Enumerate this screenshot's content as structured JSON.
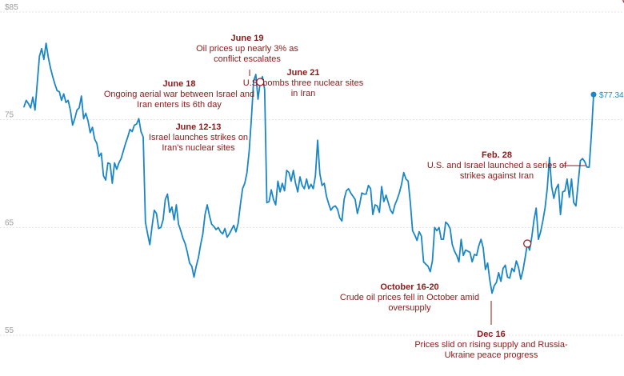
{
  "chart_data": {
    "type": "line",
    "title": "",
    "xlabel": "",
    "ylabel": "",
    "ylim": [
      55,
      85
    ],
    "yticks": [
      {
        "value": 85,
        "label": "$85"
      },
      {
        "value": 75,
        "label": "75"
      },
      {
        "value": 65,
        "label": "65"
      },
      {
        "value": 55,
        "label": "55"
      }
    ],
    "grid": true,
    "legend": "none",
    "colors": {
      "line": "#1a86c7",
      "annotation": "#8b1a1a",
      "end_label": "#1a86c7",
      "grid": "#e2e2e2",
      "tick": "#9a9a9a"
    },
    "series": [
      {
        "values": [
          76.2,
          76.8,
          76.5,
          76.1,
          77.1,
          75.9,
          78.4,
          80.9,
          81.6,
          80.6,
          82.1,
          80.8,
          79.8,
          79.0,
          78.3,
          77.7,
          77.6,
          76.8,
          77.4,
          76.6,
          76.8,
          75.9,
          74.5,
          75.1,
          75.9,
          76.1,
          77.2,
          75.1,
          75.6,
          74.9,
          73.8,
          74.3,
          73.2,
          72.8,
          71.6,
          71.9,
          69.8,
          69.4,
          71.0,
          70.9,
          69.1,
          71.0,
          70.4,
          71.0,
          71.4,
          72.1,
          72.8,
          73.4,
          74.1,
          73.9,
          74.5,
          74.6,
          75.1,
          73.9,
          73.4,
          65.5,
          64.4,
          63.4,
          65.1,
          66.6,
          66.3,
          64.9,
          65.0,
          65.7,
          67.6,
          68.1,
          66.4,
          66.9,
          65.7,
          67.1,
          65.3,
          64.7,
          64.0,
          63.5,
          62.7,
          61.7,
          61.4,
          60.4,
          61.4,
          62.2,
          63.4,
          64.4,
          66.2,
          67.1,
          66.1,
          65.3,
          65.1,
          64.8,
          65.0,
          64.6,
          64.4,
          64.9,
          64.1,
          64.4,
          64.8,
          65.2,
          64.6,
          65.4,
          67.1,
          68.6,
          69.1,
          70.1,
          72.1,
          75.1,
          78.6,
          79.2,
          76.9,
          78.5,
          79.0,
          77.8,
          67.3,
          67.4,
          68.5,
          67.6,
          67.1,
          69.3,
          68.3,
          69.1,
          68.4,
          70.3,
          70.1,
          69.3,
          70.3,
          69.1,
          68.3,
          69.7,
          68.9,
          68.6,
          69.5,
          68.6,
          69.0,
          68.6,
          69.8,
          73.1,
          70.0,
          68.9,
          69.1,
          67.9,
          67.2,
          66.6,
          66.9,
          67.0,
          66.7,
          65.9,
          65.6,
          67.6,
          68.4,
          68.6,
          68.2,
          67.9,
          67.6,
          66.3,
          67.1,
          68.2,
          68.1,
          68.1,
          68.9,
          68.6,
          66.2,
          67.1,
          67.0,
          66.4,
          68.8,
          67.4,
          68.0,
          67.3,
          66.6,
          66.3,
          67.1,
          67.6,
          68.2,
          69.0,
          70.1,
          69.5,
          69.3,
          67.3,
          64.7,
          64.3,
          63.8,
          64.6,
          64.2,
          61.8,
          61.6,
          61.4,
          60.9,
          61.9,
          65.0,
          64.7,
          65.0,
          63.9,
          63.9,
          65.5,
          65.3,
          64.9,
          63.4,
          62.8,
          62.4,
          61.8,
          63.9,
          62.4,
          62.9,
          62.8,
          62.7,
          61.8,
          62.5,
          62.4,
          63.3,
          63.9,
          63.1,
          61.1,
          61.7,
          60.1,
          58.9,
          59.6,
          59.9,
          60.8,
          60.0,
          61.2,
          61.5,
          60.4,
          60.3,
          61.2,
          60.9,
          61.9,
          61.3,
          60.2,
          61.0,
          62.2,
          63.5,
          62.9,
          64.1,
          65.7,
          66.8,
          63.9,
          64.6,
          65.6,
          66.8,
          68.6,
          71.5,
          68.8,
          67.7,
          68.6,
          69.0,
          66.2,
          68.3,
          68.4,
          69.5,
          67.8,
          69.5,
          67.3,
          67.0,
          69.1,
          71.2,
          71.4,
          71.1,
          70.6,
          70.6,
          73.6,
          77.34
        ]
      }
    ],
    "end_label": "$77.34",
    "annotations": [
      {
        "head": "June 19",
        "lines": [
          "Oil prices up nearly 3% as",
          "conflict escalates"
        ],
        "index": 107
      },
      {
        "head": "June 18",
        "lines": [
          "Ongoing aerial war between Israel and",
          "Iran enters its 6th day"
        ],
        "index": 106
      },
      {
        "head": "June 21",
        "lines": [
          "U.S. bombs three nuclear sites",
          "in Iran"
        ],
        "index": 109
      },
      {
        "head": "June 12-13",
        "lines": [
          "Israel launches strikes on",
          "Iran's nuclear sites"
        ],
        "index": 104
      },
      {
        "head": "Feb. 28",
        "lines": [
          "U.S. and Israel launched a series of",
          "strikes against Iran"
        ],
        "index": 273
      },
      {
        "head": "October 16-20",
        "lines": [
          "Crude oil prices fell in October amid",
          "oversupply"
        ],
        "index": 225
      },
      {
        "head": "Dec 16",
        "lines": [
          "Prices slid on rising supply and Russia-",
          "Ukraine peace progress"
        ],
        "index": 228
      }
    ]
  }
}
